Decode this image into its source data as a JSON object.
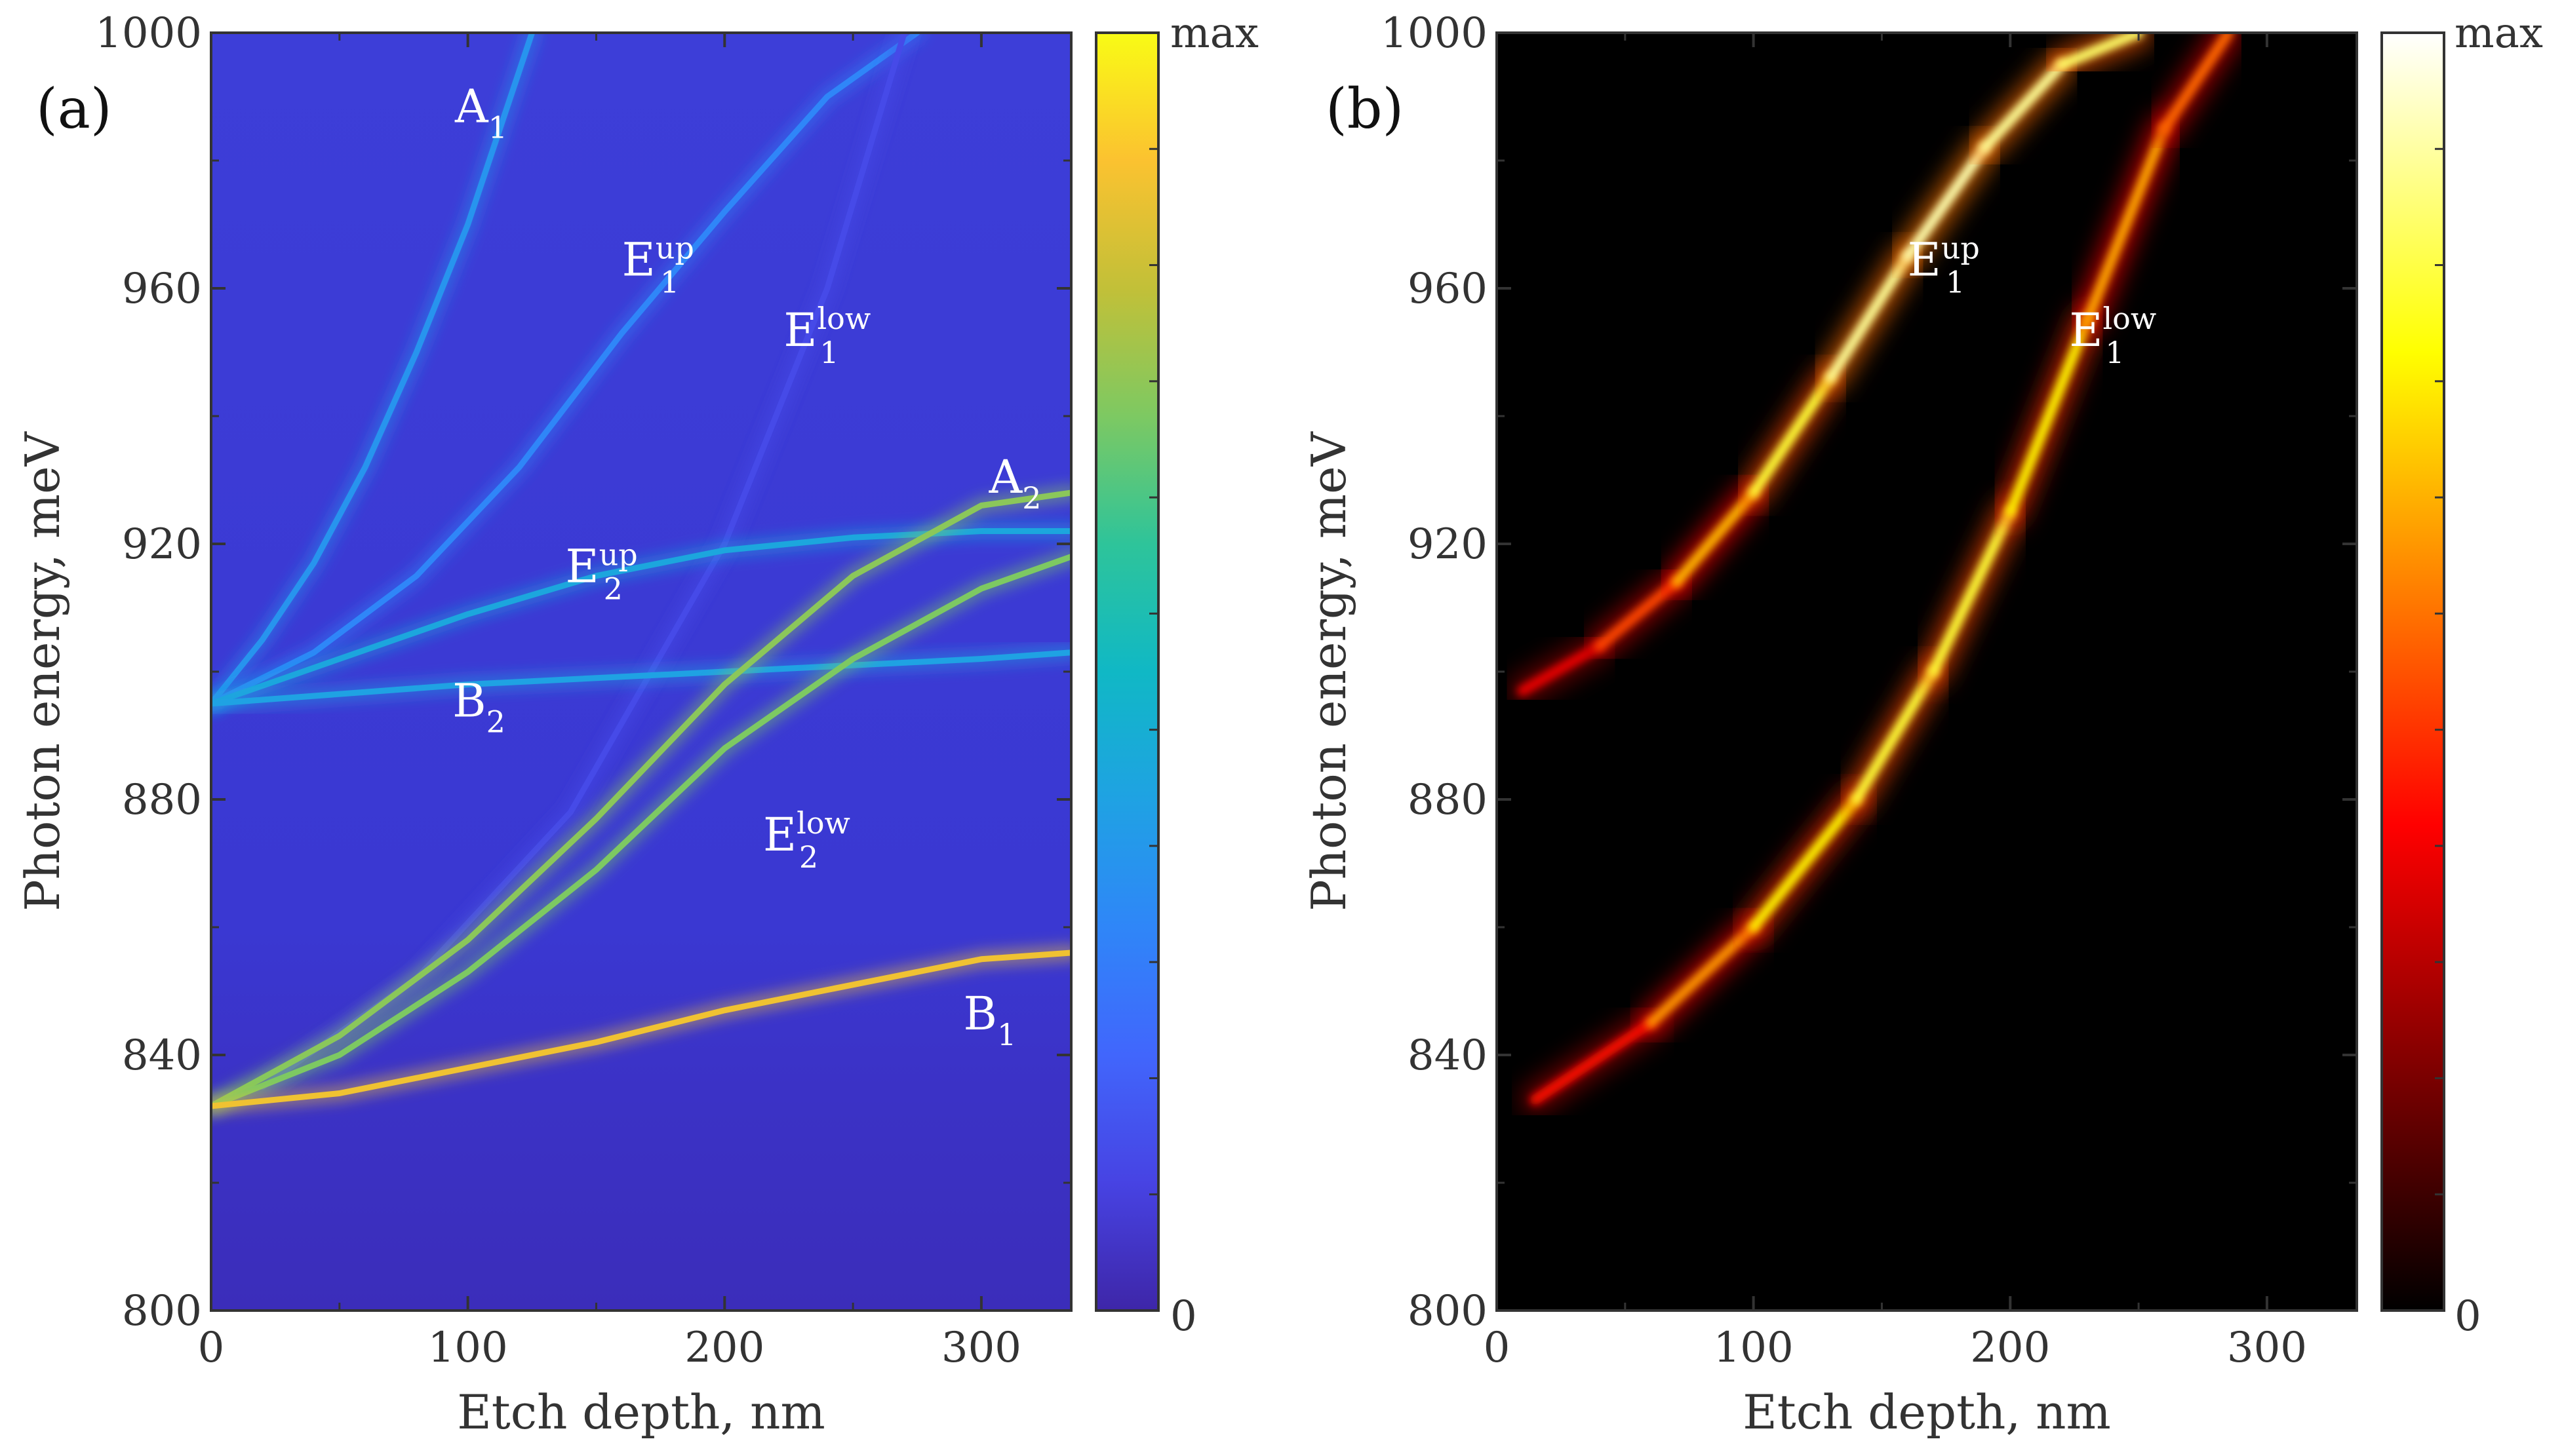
{
  "chart_data": [
    {
      "type": "heatmap",
      "panel_label": "(a)",
      "xlabel": "Etch depth, nm",
      "ylabel": "Photon energy, meV",
      "xlim": [
        0,
        335
      ],
      "ylim": [
        800,
        1000
      ],
      "xticks": [
        0,
        100,
        200,
        300
      ],
      "yticks": [
        800,
        840,
        880,
        920,
        960,
        1000
      ],
      "colormap": "parula",
      "colorbar": {
        "min_label": "0",
        "max_label": "max"
      },
      "series": [
        {
          "name": "A1",
          "x": [
            0,
            20,
            40,
            60,
            80,
            100,
            115,
            125
          ],
          "y": [
            895,
            905,
            917,
            932,
            950,
            970,
            988,
            1000
          ],
          "intensity": 0.35
        },
        {
          "name": "E1 up",
          "x": [
            0,
            40,
            80,
            120,
            160,
            200,
            240,
            275
          ],
          "y": [
            895,
            903,
            915,
            932,
            953,
            972,
            990,
            1000
          ],
          "intensity": 0.3
        },
        {
          "name": "E1 low",
          "x": [
            20,
            80,
            140,
            200,
            240,
            270
          ],
          "y": [
            835,
            852,
            878,
            920,
            960,
            1000
          ],
          "intensity": 0.12
        },
        {
          "name": "E2 up",
          "x": [
            0,
            50,
            100,
            150,
            200,
            250,
            300,
            335
          ],
          "y": [
            895,
            902,
            909,
            915,
            919,
            921,
            922,
            922
          ],
          "intensity": 0.42
        },
        {
          "name": "B2",
          "x": [
            0,
            100,
            200,
            300,
            335
          ],
          "y": [
            895,
            898,
            900,
            902,
            903
          ],
          "intensity": 0.4
        },
        {
          "name": "A2",
          "x": [
            0,
            50,
            100,
            150,
            200,
            250,
            300,
            335
          ],
          "y": [
            832,
            843,
            858,
            877,
            898,
            915,
            926,
            928
          ],
          "intensity": 0.72
        },
        {
          "name": "E2 low",
          "x": [
            0,
            50,
            100,
            150,
            200,
            250,
            300,
            335
          ],
          "y": [
            832,
            840,
            853,
            869,
            888,
            902,
            913,
            918
          ],
          "intensity": 0.7
        },
        {
          "name": "B1",
          "x": [
            0,
            50,
            100,
            150,
            200,
            250,
            300,
            335
          ],
          "y": [
            832,
            834,
            838,
            842,
            847,
            851,
            855,
            856
          ],
          "intensity": 0.88
        }
      ],
      "annotations": [
        {
          "base": "A",
          "sub": "1",
          "sup": "",
          "x": 95,
          "y": 986
        },
        {
          "base": "E",
          "sub": "1",
          "sup": "up",
          "x": 160,
          "y": 962
        },
        {
          "base": "E",
          "sub": "1",
          "sup": "low",
          "x": 223,
          "y": 951
        },
        {
          "base": "A",
          "sub": "2",
          "sup": "",
          "x": 303,
          "y": 928
        },
        {
          "base": "E",
          "sub": "2",
          "sup": "up",
          "x": 138,
          "y": 914
        },
        {
          "base": "B",
          "sub": "2",
          "sup": "",
          "x": 94,
          "y": 893
        },
        {
          "base": "E",
          "sub": "2",
          "sup": "low",
          "x": 215,
          "y": 872
        },
        {
          "base": "B",
          "sub": "1",
          "sup": "",
          "x": 293,
          "y": 844
        }
      ]
    },
    {
      "type": "heatmap",
      "panel_label": "(b)",
      "xlabel": "Etch depth, nm",
      "ylabel": "Photon energy, meV",
      "xlim": [
        0,
        335
      ],
      "ylim": [
        800,
        1000
      ],
      "xticks": [
        0,
        100,
        200,
        300
      ],
      "yticks": [
        800,
        840,
        880,
        920,
        960,
        1000
      ],
      "colormap": "hot",
      "colorbar": {
        "min_label": "0",
        "max_label": "max"
      },
      "series": [
        {
          "name": "E1 up",
          "x": [
            10,
            40,
            70,
            100,
            130,
            160,
            190,
            220,
            250
          ],
          "y": [
            897,
            904,
            914,
            928,
            946,
            965,
            982,
            995,
            1000
          ],
          "intensity": [
            0.3,
            0.45,
            0.6,
            0.8,
            0.95,
            1.0,
            1.0,
            0.95,
            0.9
          ]
        },
        {
          "name": "E1 low",
          "x": [
            15,
            60,
            100,
            140,
            170,
            200,
            230,
            260,
            285
          ],
          "y": [
            833,
            845,
            860,
            880,
            900,
            925,
            955,
            985,
            1000
          ],
          "intensity": [
            0.3,
            0.55,
            0.75,
            0.85,
            0.9,
            0.85,
            0.75,
            0.6,
            0.55
          ]
        }
      ],
      "annotations": [
        {
          "base": "E",
          "sub": "1",
          "sup": "up",
          "x": 160,
          "y": 962
        },
        {
          "base": "E",
          "sub": "1",
          "sup": "low",
          "x": 223,
          "y": 951
        }
      ]
    }
  ]
}
